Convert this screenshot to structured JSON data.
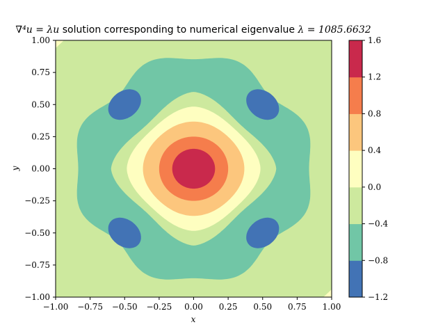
{
  "chart_data": {
    "type": "contour",
    "title": {
      "pde": "∇⁴u = λu",
      "text": "solution corresponding to numerical eigenvalue",
      "eigen": "λ = 1085.6632"
    },
    "xlabel": "x",
    "ylabel": "y",
    "xlim": [
      -1.0,
      1.0
    ],
    "ylim": [
      -1.0,
      1.0
    ],
    "x_ticks": [
      "−1.00",
      "−0.75",
      "−0.50",
      "−0.25",
      "0.00",
      "0.25",
      "0.50",
      "0.75",
      "1.00"
    ],
    "y_ticks": [
      "−1.00",
      "−0.75",
      "−0.50",
      "−0.25",
      "0.00",
      "0.25",
      "0.50",
      "0.75",
      "1.00"
    ],
    "colorbar": {
      "levels": [
        -1.2,
        -0.8,
        -0.4,
        0.0,
        0.4,
        0.8,
        1.2,
        1.6
      ],
      "tick_labels": [
        "−1.2",
        "−0.8",
        "−0.4",
        "0.0",
        "0.4",
        "0.8",
        "1.2",
        "1.6"
      ],
      "colors": [
        "#4273b5",
        "#71c6a6",
        "#cde99e",
        "#fefec0",
        "#fcc67d",
        "#f57d4c",
        "#c9294c"
      ]
    },
    "features": {
      "central_peak": {
        "x": 0.0,
        "y": 0.0,
        "max_value": 1.5
      },
      "corner_minima": [
        {
          "x": -0.5,
          "y": 0.5,
          "min_value": -0.9
        },
        {
          "x": 0.5,
          "y": 0.5,
          "min_value": -0.9
        },
        {
          "x": -0.5,
          "y": -0.5,
          "min_value": -0.9
        },
        {
          "x": 0.5,
          "y": -0.5,
          "min_value": -0.9
        }
      ]
    }
  }
}
